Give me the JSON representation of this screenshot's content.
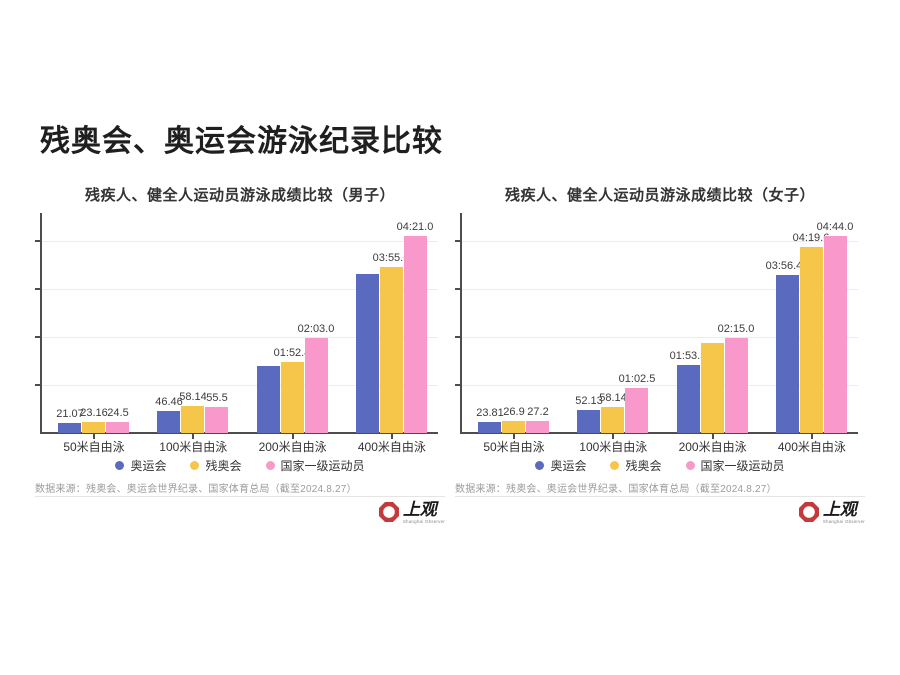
{
  "page": {
    "title": "残奥会、奥运会游泳纪录比较"
  },
  "colors": {
    "olympic_blue": "#5A6ABF",
    "paralympic_yellow": "#F6C64A",
    "national_pink": "#F998CA",
    "axis": "#4d4d4d",
    "gridline": "#ececec",
    "logo_red": "#C4393B"
  },
  "logo": {
    "cn": "上观",
    "en": "Shanghai Observer"
  },
  "chart_data": [
    {
      "type": "bar",
      "subtitle": "残疾人、健全人运动员游泳成绩比较（男子）",
      "categories": [
        "50米自由泳",
        "100米自由泳",
        "200米自由泳",
        "400米自由泳"
      ],
      "series": [
        {
          "name": "奥运会",
          "color": "#5A6ABF",
          "values": [
            21.07,
            46.46,
            143.0,
            340.1
          ],
          "labels": [
            "21.07",
            "46.46",
            "",
            ""
          ]
        },
        {
          "name": "残奥会",
          "color": "#F6C64A",
          "values": [
            23.16,
            58.14,
            152.4,
            355.6
          ],
          "labels": [
            "23.16",
            "58.14",
            "01:52.4",
            "03:55.6"
          ]
        },
        {
          "name": "国家一级运动员",
          "color": "#F998CA",
          "values": [
            24.5,
            55.5,
            203.0,
            421.0
          ],
          "labels": [
            "24.5",
            "55.5",
            "02:03.0",
            "04:21.0"
          ]
        }
      ],
      "ymax": 421.0,
      "grid": "horizontal",
      "legend_position": "bottom",
      "source": "数据来源：残奥会、奥运会世界纪录、国家体育总局（截至2024.8.27）"
    },
    {
      "type": "bar",
      "subtitle": "残疾人、健全人运动员游泳成绩比较（女子）",
      "categories": [
        "50米自由泳",
        "100米自由泳",
        "200米自由泳",
        "400米自由泳"
      ],
      "series": [
        {
          "name": "奥运会",
          "color": "#5A6ABF",
          "values": [
            23.81,
            52.13,
            153.3,
            356.46
          ],
          "labels": [
            "23.81",
            "52.13",
            "01:53.3",
            "03:56.46"
          ]
        },
        {
          "name": "残奥会",
          "color": "#F6C64A",
          "values": [
            26.9,
            58.14,
            203.3,
            419.6
          ],
          "labels": [
            "26.9",
            "58.14",
            "",
            "04:19.6"
          ]
        },
        {
          "name": "国家一级运动员",
          "color": "#F998CA",
          "values": [
            27.2,
            102.5,
            215.0,
            444.0
          ],
          "labels": [
            "27.2",
            "01:02.5",
            "02:15.0",
            "04:44.0"
          ]
        }
      ],
      "ymax": 444.0,
      "grid": "horizontal",
      "legend_position": "bottom",
      "source": "数据来源：残奥会、奥运会世界纪录、国家体育总局（截至2024.8.27）"
    }
  ]
}
